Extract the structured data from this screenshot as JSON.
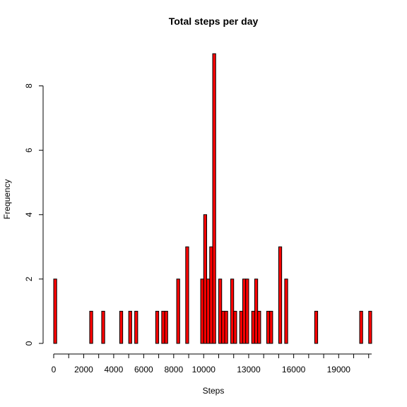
{
  "chart_data": {
    "type": "bar",
    "title": "Total steps per day",
    "xlabel": "Steps",
    "ylabel": "Frequency",
    "bin_width": 200,
    "xlim": [
      0,
      21200
    ],
    "ylim": [
      0,
      9
    ],
    "x_ticks": [
      0,
      1000,
      2000,
      3000,
      4000,
      5000,
      6000,
      7000,
      8000,
      9000,
      10000,
      11000,
      12000,
      13000,
      14000,
      15000,
      16000,
      17000,
      18000,
      19000,
      20000,
      21000
    ],
    "x_tick_labels": [
      "0",
      "2000",
      "4000",
      "6000",
      "8000",
      "10000",
      "13000",
      "16000",
      "19000"
    ],
    "x_tick_label_values": [
      0,
      2000,
      4000,
      6000,
      8000,
      10000,
      13000,
      16000,
      19000
    ],
    "y_ticks": [
      0,
      2,
      4,
      6,
      8
    ],
    "y_tick_labels": [
      "0",
      "2",
      "4",
      "6",
      "8"
    ],
    "grid": false,
    "legend": "none",
    "bar_color": "#ff0000",
    "bins": [
      {
        "x": 0,
        "count": 2
      },
      {
        "x": 2400,
        "count": 1
      },
      {
        "x": 3200,
        "count": 1
      },
      {
        "x": 4400,
        "count": 1
      },
      {
        "x": 5000,
        "count": 1
      },
      {
        "x": 5400,
        "count": 1
      },
      {
        "x": 6800,
        "count": 1
      },
      {
        "x": 7200,
        "count": 1
      },
      {
        "x": 7400,
        "count": 1
      },
      {
        "x": 8200,
        "count": 2
      },
      {
        "x": 8800,
        "count": 3
      },
      {
        "x": 9800,
        "count": 2
      },
      {
        "x": 10000,
        "count": 4
      },
      {
        "x": 10200,
        "count": 2
      },
      {
        "x": 10400,
        "count": 3
      },
      {
        "x": 10600,
        "count": 9
      },
      {
        "x": 11000,
        "count": 2
      },
      {
        "x": 11200,
        "count": 1
      },
      {
        "x": 11400,
        "count": 1
      },
      {
        "x": 11800,
        "count": 2
      },
      {
        "x": 12000,
        "count": 1
      },
      {
        "x": 12400,
        "count": 1
      },
      {
        "x": 12600,
        "count": 2
      },
      {
        "x": 12800,
        "count": 2
      },
      {
        "x": 13200,
        "count": 1
      },
      {
        "x": 13400,
        "count": 2
      },
      {
        "x": 13600,
        "count": 1
      },
      {
        "x": 14200,
        "count": 1
      },
      {
        "x": 14400,
        "count": 1
      },
      {
        "x": 15000,
        "count": 3
      },
      {
        "x": 15400,
        "count": 2
      },
      {
        "x": 17400,
        "count": 1
      },
      {
        "x": 20400,
        "count": 1
      },
      {
        "x": 21000,
        "count": 1
      }
    ]
  }
}
